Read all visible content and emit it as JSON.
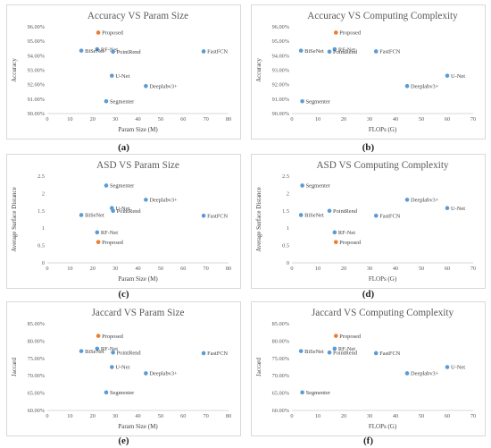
{
  "colors": {
    "normal": "#5b9bd5",
    "proposed": "#ed7d31",
    "axis": "#d9d9d9",
    "text": "#595959"
  },
  "chart_data": [
    {
      "type": "scatter",
      "panel": "(a)",
      "title": "Accuracy VS Param Size",
      "xlabel": "Param Size (M)",
      "ylabel": "Accuracy",
      "xlim": [
        0,
        80
      ],
      "ylim": [
        0.9,
        0.96
      ],
      "xticks": [
        "0",
        "10",
        "20",
        "30",
        "40",
        "50",
        "60",
        "70",
        "80"
      ],
      "yticks": [
        "90.00%",
        "91.00%",
        "92.00%",
        "93.00%",
        "94.00%",
        "95.00%",
        "96.00%"
      ],
      "points": [
        {
          "label": "Proposed",
          "x": 22.5,
          "y": 0.956,
          "proposed": true
        },
        {
          "label": "RF-Net",
          "x": 22.0,
          "y": 0.9445
        },
        {
          "label": "BiSeNet",
          "x": 15.0,
          "y": 0.9435
        },
        {
          "label": "PointRend",
          "x": 29.0,
          "y": 0.9428
        },
        {
          "label": "FastFCN",
          "x": 69.0,
          "y": 0.943
        },
        {
          "label": "U-Net",
          "x": 28.5,
          "y": 0.9262
        },
        {
          "label": "Deeplabv3+",
          "x": 43.5,
          "y": 0.919
        },
        {
          "label": "Segmenter",
          "x": 26.0,
          "y": 0.9085
        }
      ]
    },
    {
      "type": "scatter",
      "panel": "(b)",
      "title": "Accuracy VS Computing Complexity",
      "xlabel": "FLOPs (G)",
      "ylabel": "Accuracy",
      "xlim": [
        0,
        70
      ],
      "ylim": [
        0.9,
        0.96
      ],
      "xticks": [
        "0",
        "10",
        "20",
        "30",
        "40",
        "50",
        "60",
        "70"
      ],
      "yticks": [
        "90.00%",
        "91.00%",
        "92.00%",
        "93.00%",
        "94.00%",
        "95.00%",
        "96.00%"
      ],
      "points": [
        {
          "label": "Proposed",
          "x": 17.0,
          "y": 0.956,
          "proposed": true
        },
        {
          "label": "RF-Net",
          "x": 16.5,
          "y": 0.9445
        },
        {
          "label": "BiSeNet",
          "x": 3.5,
          "y": 0.9435
        },
        {
          "label": "PointRend",
          "x": 14.5,
          "y": 0.9428
        },
        {
          "label": "FastFCN",
          "x": 32.5,
          "y": 0.943
        },
        {
          "label": "U-Net",
          "x": 60.0,
          "y": 0.9262
        },
        {
          "label": "Deeplabv3+",
          "x": 44.5,
          "y": 0.919
        },
        {
          "label": "Segmenter",
          "x": 4.0,
          "y": 0.9085
        }
      ]
    },
    {
      "type": "scatter",
      "panel": "(c)",
      "title": "ASD VS Param Size",
      "xlabel": "Param Size (M)",
      "ylabel": "Average Surface Distance",
      "xlim": [
        0,
        80
      ],
      "ylim": [
        0,
        2.5
      ],
      "xticks": [
        "0",
        "10",
        "20",
        "30",
        "40",
        "50",
        "60",
        "70",
        "80"
      ],
      "yticks": [
        "0",
        "0.5",
        "1",
        "1.5",
        "2",
        "2.5"
      ],
      "points": [
        {
          "label": "Segmenter",
          "x": 26.0,
          "y": 2.23
        },
        {
          "label": "Deeplabv3+",
          "x": 43.5,
          "y": 1.82
        },
        {
          "label": "U-Net",
          "x": 28.5,
          "y": 1.58
        },
        {
          "label": "PointRend",
          "x": 29.0,
          "y": 1.5
        },
        {
          "label": "BiSeNet",
          "x": 15.0,
          "y": 1.38
        },
        {
          "label": "FastFCN",
          "x": 69.0,
          "y": 1.36
        },
        {
          "label": "RF-Net",
          "x": 22.0,
          "y": 0.88
        },
        {
          "label": "Proposed",
          "x": 22.5,
          "y": 0.6,
          "proposed": true
        }
      ]
    },
    {
      "type": "scatter",
      "panel": "(d)",
      "title": "ASD VS Computing Complexity",
      "xlabel": "FLOPs (G)",
      "ylabel": "Average Surface Distance",
      "xlim": [
        0,
        70
      ],
      "ylim": [
        0,
        2.5
      ],
      "xticks": [
        "0",
        "10",
        "20",
        "30",
        "40",
        "50",
        "60",
        "70"
      ],
      "yticks": [
        "0",
        "0.5",
        "1",
        "1.5",
        "2",
        "2.5"
      ],
      "points": [
        {
          "label": "Segmenter",
          "x": 4.0,
          "y": 2.23
        },
        {
          "label": "Deeplabv3+",
          "x": 44.5,
          "y": 1.82
        },
        {
          "label": "U-Net",
          "x": 60.0,
          "y": 1.58
        },
        {
          "label": "PointRend",
          "x": 14.5,
          "y": 1.5
        },
        {
          "label": "BiSeNet",
          "x": 3.5,
          "y": 1.38
        },
        {
          "label": "FastFCN",
          "x": 32.5,
          "y": 1.36
        },
        {
          "label": "RF-Net",
          "x": 16.5,
          "y": 0.88
        },
        {
          "label": "Proposed",
          "x": 17.0,
          "y": 0.6,
          "proposed": true
        }
      ]
    },
    {
      "type": "scatter",
      "panel": "(e)",
      "title": "Jaccard VS Param Size",
      "xlabel": "Param Size (M)",
      "ylabel": "Jaccard",
      "xlim": [
        0,
        80
      ],
      "ylim": [
        0.6,
        0.85
      ],
      "xticks": [
        "0",
        "10",
        "20",
        "30",
        "40",
        "50",
        "60",
        "70",
        "80"
      ],
      "yticks": [
        "60.00%",
        "65.00%",
        "70.00%",
        "75.00%",
        "80.00%",
        "85.00%"
      ],
      "points": [
        {
          "label": "Proposed",
          "x": 22.5,
          "y": 0.815,
          "proposed": true
        },
        {
          "label": "RF-Net",
          "x": 22.0,
          "y": 0.778
        },
        {
          "label": "BiSeNet",
          "x": 15.0,
          "y": 0.771
        },
        {
          "label": "PointRend",
          "x": 29.0,
          "y": 0.767
        },
        {
          "label": "FastFCN",
          "x": 69.0,
          "y": 0.765
        },
        {
          "label": "U-Net",
          "x": 28.5,
          "y": 0.725
        },
        {
          "label": "Deeplabv3+",
          "x": 43.5,
          "y": 0.707
        },
        {
          "label": "Segmenter",
          "x": 26.0,
          "y": 0.652
        }
      ]
    },
    {
      "type": "scatter",
      "panel": "(f)",
      "title": "Jaccard VS Computing Complexity",
      "xlabel": "FLOPs (G)",
      "ylabel": "Jaccard",
      "xlim": [
        0,
        70
      ],
      "ylim": [
        0.6,
        0.85
      ],
      "xticks": [
        "0",
        "10",
        "20",
        "30",
        "40",
        "50",
        "60",
        "70"
      ],
      "yticks": [
        "60.00%",
        "65.00%",
        "70.00%",
        "75.00%",
        "80.00%",
        "85.00%"
      ],
      "points": [
        {
          "label": "Proposed",
          "x": 17.0,
          "y": 0.815,
          "proposed": true
        },
        {
          "label": "RF-Net",
          "x": 16.5,
          "y": 0.778
        },
        {
          "label": "BiSeNet",
          "x": 3.5,
          "y": 0.771
        },
        {
          "label": "PointRend",
          "x": 14.5,
          "y": 0.767
        },
        {
          "label": "FastFCN",
          "x": 32.5,
          "y": 0.765
        },
        {
          "label": "U-Net",
          "x": 60.0,
          "y": 0.725
        },
        {
          "label": "Deeplabv3+",
          "x": 44.5,
          "y": 0.707
        },
        {
          "label": "Segmenter",
          "x": 4.0,
          "y": 0.652
        }
      ]
    }
  ]
}
